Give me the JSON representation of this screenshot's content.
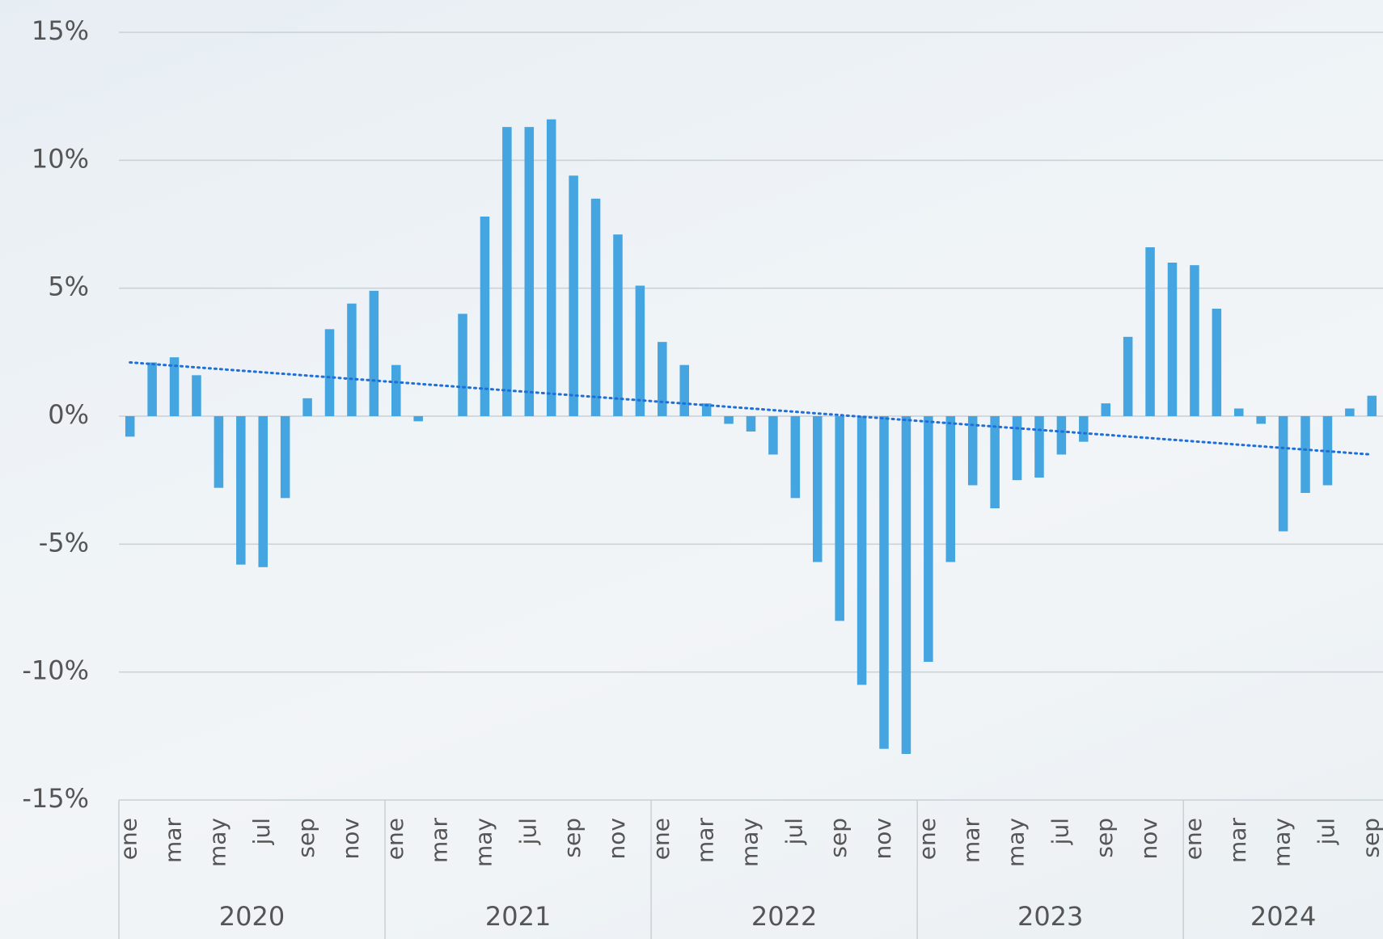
{
  "chart_data": {
    "type": "bar",
    "categories": [
      "ene",
      null,
      "mar",
      null,
      "may",
      null,
      "jul",
      null,
      "sep",
      null,
      "nov",
      null,
      "ene",
      null,
      "mar",
      null,
      "may",
      null,
      "jul",
      null,
      "sep",
      null,
      "nov",
      null,
      "ene",
      null,
      "mar",
      null,
      "may",
      null,
      "jul",
      null,
      "sep",
      null,
      "nov",
      null,
      "ene",
      null,
      "mar",
      null,
      "may",
      null,
      "jul",
      null,
      "sep",
      null,
      "nov",
      null,
      "ene",
      null,
      "mar",
      null,
      "may",
      null,
      "jul",
      null,
      "sep"
    ],
    "groups": [
      "2020",
      "2021",
      "2022",
      "2023",
      "2024"
    ],
    "values": [
      -0.8,
      2.1,
      2.3,
      1.6,
      -2.8,
      -5.8,
      -5.9,
      -3.2,
      0.7,
      3.4,
      4.4,
      4.9,
      2.0,
      -0.2,
      0,
      4.0,
      7.8,
      11.3,
      11.3,
      11.6,
      9.4,
      8.5,
      7.1,
      5.1,
      2.9,
      2.0,
      0.5,
      -0.3,
      -0.6,
      -1.5,
      -3.2,
      -5.7,
      -8.0,
      -10.5,
      -13.0,
      -13.2,
      -9.6,
      -5.7,
      -2.7,
      -3.6,
      -2.5,
      -2.4,
      -1.5,
      -1.0,
      0.5,
      3.1,
      6.6,
      6.0,
      5.9,
      4.2,
      0.3,
      -0.3,
      -4.5,
      -3.0,
      -2.7,
      0.3,
      0.8
    ],
    "color": "#45a5e0",
    "trendline": {
      "start": 2.1,
      "end": -1.5,
      "color": "#1e6fd8"
    },
    "ylim": [
      -15,
      15
    ],
    "yticks": [
      {
        "value": -15,
        "label": "-15%"
      },
      {
        "value": -10,
        "label": "-10%"
      },
      {
        "value": -5,
        "label": "-5%"
      },
      {
        "value": 0,
        "label": "0%"
      },
      {
        "value": 5,
        "label": "5%"
      },
      {
        "value": 10,
        "label": "10%"
      },
      {
        "value": 15,
        "label": "15%"
      }
    ],
    "grid": true
  }
}
